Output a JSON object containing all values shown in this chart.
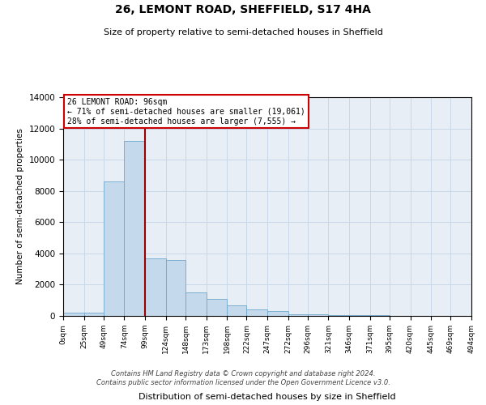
{
  "title": "26, LEMONT ROAD, SHEFFIELD, S17 4HA",
  "subtitle": "Size of property relative to semi-detached houses in Sheffield",
  "xlabel": "Distribution of semi-detached houses by size in Sheffield",
  "ylabel": "Number of semi-detached properties",
  "annotation_title": "26 LEMONT ROAD: 96sqm",
  "annotation_line1": "← 71% of semi-detached houses are smaller (19,061)",
  "annotation_line2": "28% of semi-detached houses are larger (7,555) →",
  "footer1": "Contains HM Land Registry data © Crown copyright and database right 2024.",
  "footer2": "Contains public sector information licensed under the Open Government Licence v3.0.",
  "bin_edges": [
    0,
    25,
    49,
    74,
    99,
    124,
    148,
    173,
    198,
    222,
    247,
    272,
    296,
    321,
    346,
    371,
    395,
    420,
    445,
    469,
    494
  ],
  "bin_labels": [
    "0sqm",
    "25sqm",
    "49sqm",
    "74sqm",
    "99sqm",
    "124sqm",
    "148sqm",
    "173sqm",
    "198sqm",
    "222sqm",
    "247sqm",
    "272sqm",
    "296sqm",
    "321sqm",
    "346sqm",
    "371sqm",
    "395sqm",
    "420sqm",
    "445sqm",
    "469sqm",
    "494sqm"
  ],
  "bar_heights": [
    200,
    200,
    8600,
    11200,
    3700,
    3600,
    1500,
    1100,
    700,
    400,
    300,
    100,
    100,
    50,
    50,
    30,
    20,
    10,
    5,
    2
  ],
  "bar_color": "#c5d9ec",
  "bar_edge_color": "#6fa8cc",
  "vline_color": "#990000",
  "vline_x": 99,
  "box_edge_color": "#cc0000",
  "grid_color": "#c8d8e8",
  "bg_color": "#e8eef5",
  "ylim": [
    0,
    14000
  ],
  "yticks": [
    0,
    2000,
    4000,
    6000,
    8000,
    10000,
    12000,
    14000
  ]
}
